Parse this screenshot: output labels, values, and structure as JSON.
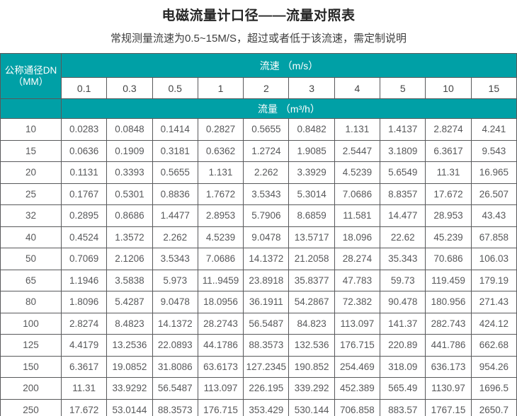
{
  "page": {
    "title": "电磁流量计口径——流量对照表",
    "subtitle": "常规测量流速为0.5~15M/S，超过或者低于该流速，需定制说明"
  },
  "table": {
    "corner_line1": "公称通径DN",
    "corner_line2": "（MM）",
    "velocity_header": "流速 （m/s）",
    "flow_header": "流量 （m³/h）",
    "velocities": [
      "0.1",
      "0.3",
      "0.5",
      "1",
      "2",
      "3",
      "4",
      "5",
      "10",
      "15"
    ],
    "rows": [
      {
        "dn": "10",
        "values": [
          "0.0283",
          "0.0848",
          "0.1414",
          "0.2827",
          "0.5655",
          "0.8482",
          "1.131",
          "1.4137",
          "2.8274",
          "4.241"
        ]
      },
      {
        "dn": "15",
        "values": [
          "0.0636",
          "0.1909",
          "0.3181",
          "0.6362",
          "1.2724",
          "1.9085",
          "2.5447",
          "3.1809",
          "6.3617",
          "9.543"
        ]
      },
      {
        "dn": "20",
        "values": [
          "0.1131",
          "0.3393",
          "0.5655",
          "1.131",
          "2.262",
          "3.3929",
          "4.5239",
          "5.6549",
          "11.31",
          "16.965"
        ]
      },
      {
        "dn": "25",
        "values": [
          "0.1767",
          "0.5301",
          "0.8836",
          "1.7672",
          "3.5343",
          "5.3014",
          "7.0686",
          "8.8357",
          "17.672",
          "26.507"
        ]
      },
      {
        "dn": "32",
        "values": [
          "0.2895",
          "0.8686",
          "1.4477",
          "2.8953",
          "5.7906",
          "8.6859",
          "11.581",
          "14.477",
          "28.953",
          "43.43"
        ]
      },
      {
        "dn": "40",
        "values": [
          "0.4524",
          "1.3572",
          "2.262",
          "4.5239",
          "9.0478",
          "13.5717",
          "18.096",
          "22.62",
          "45.239",
          "67.858"
        ]
      },
      {
        "dn": "50",
        "values": [
          "0.7069",
          "2.1206",
          "3.5343",
          "7.0686",
          "14.1372",
          "21.2058",
          "28.274",
          "35.343",
          "70.686",
          "106.03"
        ]
      },
      {
        "dn": "65",
        "values": [
          "1.1946",
          "3.5838",
          "5.973",
          "11..9459",
          "23.8918",
          "35.8377",
          "47.783",
          "59.73",
          "119.459",
          "179.19"
        ]
      },
      {
        "dn": "80",
        "values": [
          "1.8096",
          "5.4287",
          "9.0478",
          "18.0956",
          "36.1911",
          "54.2867",
          "72.382",
          "90.478",
          "180.956",
          "271.43"
        ]
      },
      {
        "dn": "100",
        "values": [
          "2.8274",
          "8.4823",
          "14.1372",
          "28.2743",
          "56.5487",
          "84.823",
          "113.097",
          "141.37",
          "282.743",
          "424.12"
        ]
      },
      {
        "dn": "125",
        "values": [
          "4.4179",
          "13.2536",
          "22.0893",
          "44.1786",
          "88.3573",
          "132.536",
          "176.715",
          "220.89",
          "441.786",
          "662.68"
        ]
      },
      {
        "dn": "150",
        "values": [
          "6.3617",
          "19.0852",
          "31.8086",
          "63.6173",
          "127.2345",
          "190.852",
          "254.469",
          "318.09",
          "636.173",
          "954.26"
        ]
      },
      {
        "dn": "200",
        "values": [
          "11.31",
          "33.9292",
          "56.5487",
          "113.097",
          "226.195",
          "339.292",
          "452.389",
          "565.49",
          "1130.97",
          "1696.5"
        ]
      },
      {
        "dn": "250",
        "values": [
          "17.672",
          "53.0144",
          "88.3573",
          "176.715",
          "353.429",
          "530.144",
          "706.858",
          "883.57",
          "1767.15",
          "2650.7"
        ]
      }
    ]
  },
  "colors": {
    "accent_teal": "#00a0a6",
    "border": "#58595b",
    "data_text": "#57585a"
  }
}
